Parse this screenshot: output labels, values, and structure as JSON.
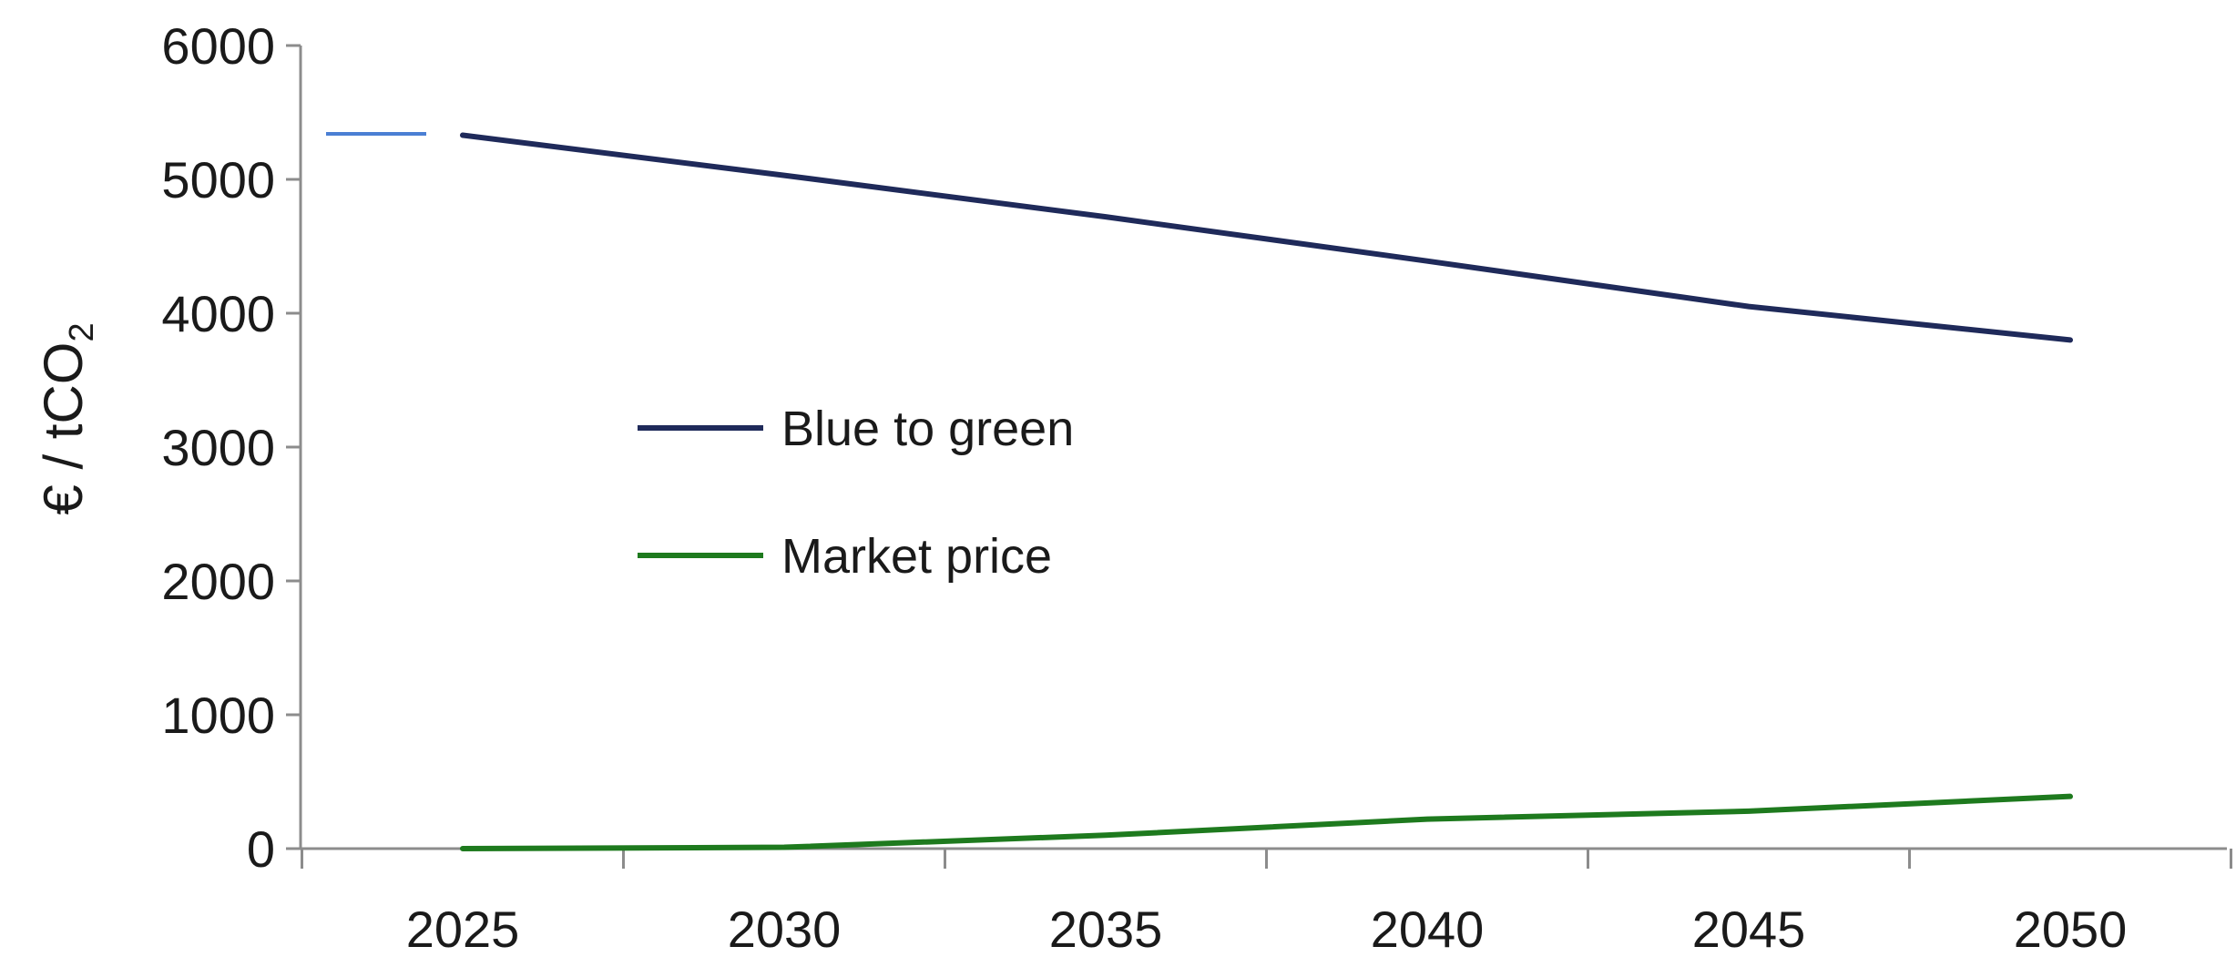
{
  "chart_data": {
    "type": "line",
    "ylabel": "€ / tCO",
    "ylabel_subscript": "2",
    "x": [
      2025,
      2030,
      2035,
      2040,
      2045,
      2050
    ],
    "x_tick_labels": [
      "2025",
      "2030",
      "2035",
      "2040",
      "2045",
      "2050"
    ],
    "y_tick_labels": [
      "0",
      "1000",
      "2000",
      "3000",
      "4000",
      "5000",
      "6000"
    ],
    "ylim": [
      0,
      6000
    ],
    "grid": false,
    "legend_position": "center-left",
    "series": [
      {
        "name": "Blue to green",
        "color": "#1f2a5a",
        "values": [
          5330,
          5030,
          4720,
          4390,
          4050,
          3800
        ]
      },
      {
        "name": "Market price",
        "color": "#1e7a1e",
        "values": [
          0,
          10,
          100,
          220,
          280,
          390
        ]
      }
    ],
    "annotation_segment": {
      "color": "#4a7fd4",
      "value": 5340
    }
  }
}
